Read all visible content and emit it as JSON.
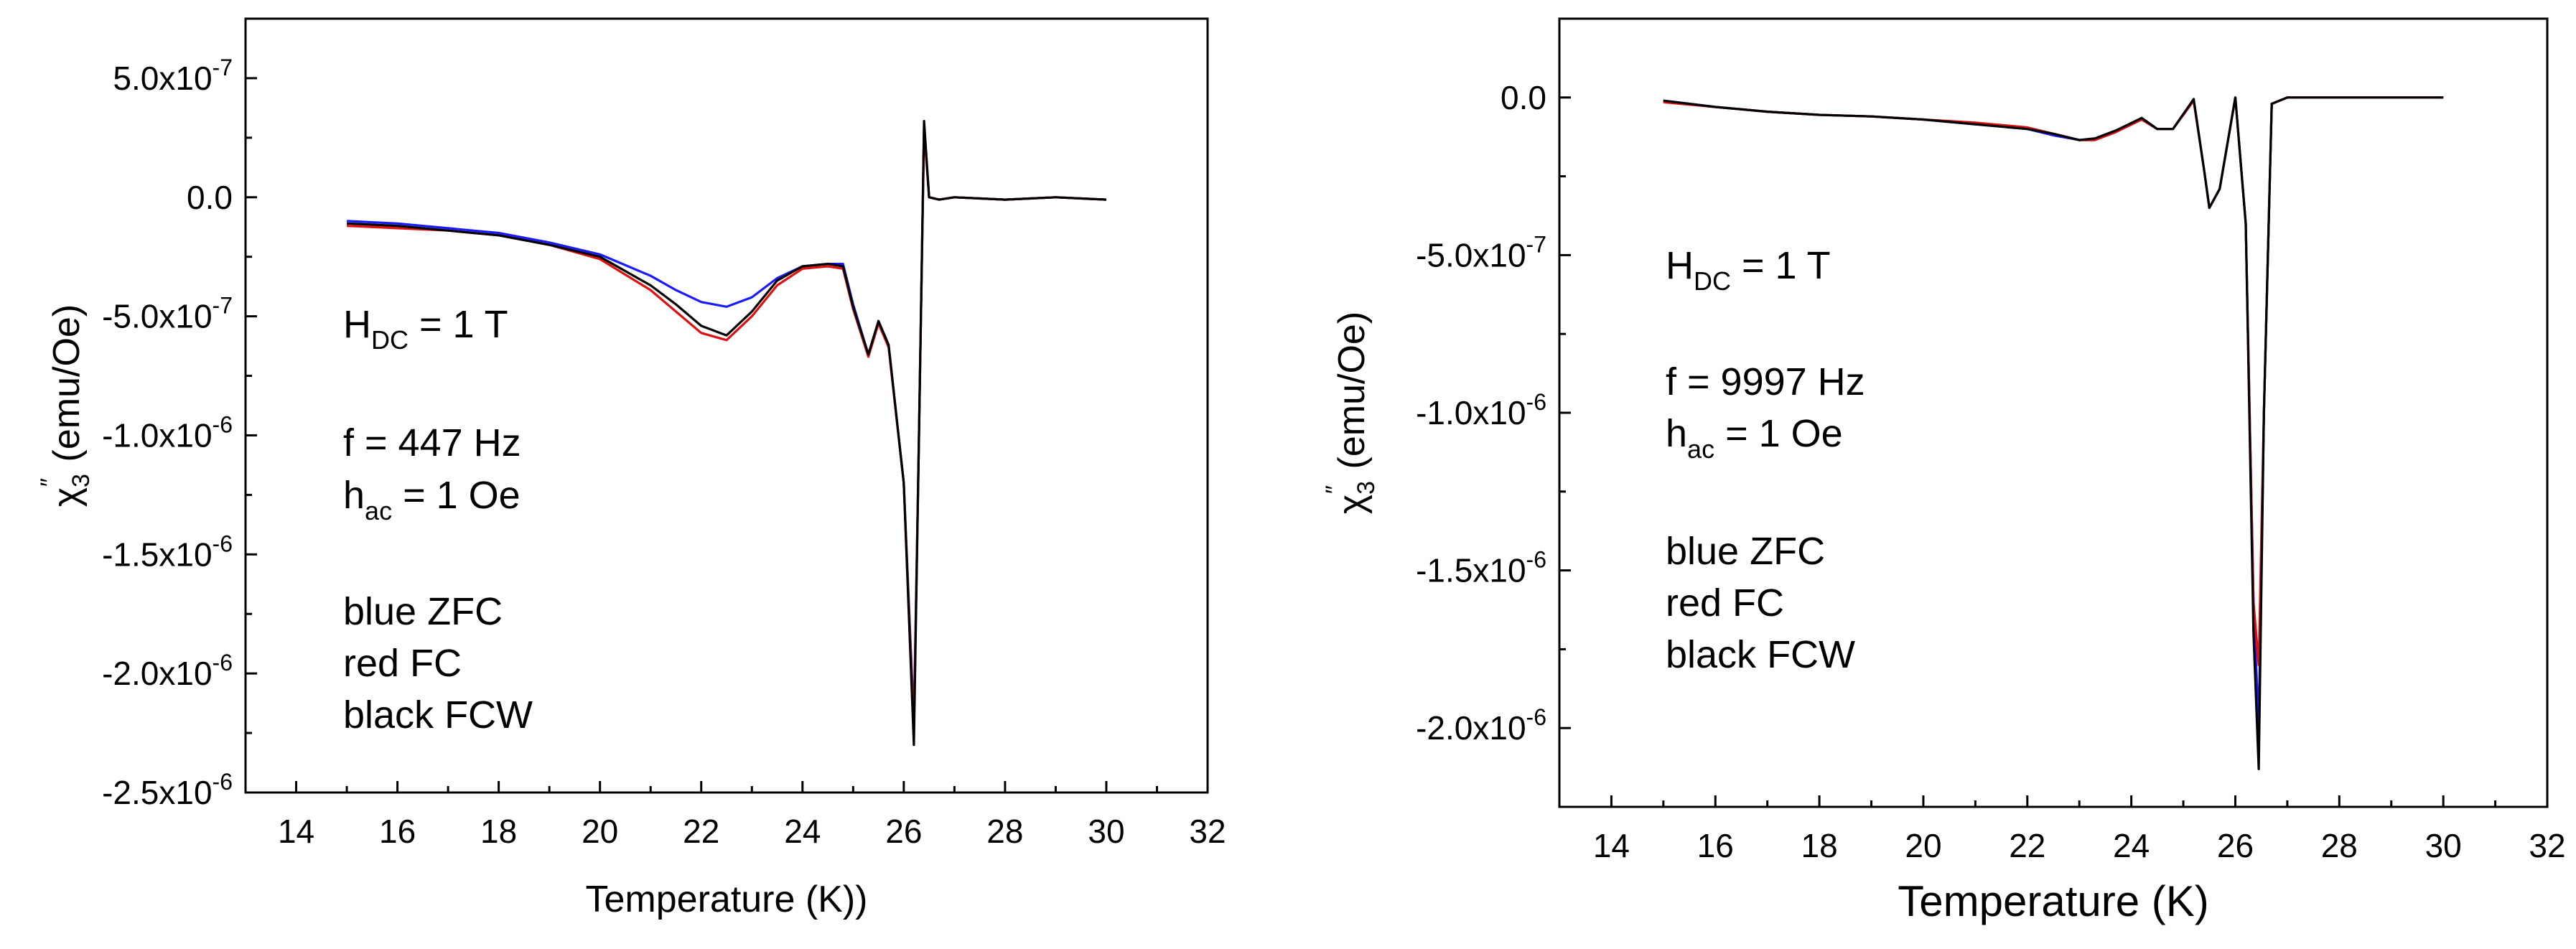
{
  "chart_data": [
    {
      "type": "line",
      "title": "",
      "xlabel": "Temperature (K))",
      "ylabel": "χ₃″ (emu/Oe)",
      "xlim": [
        13,
        32
      ],
      "ylim": [
        -2.5e-06,
        7.5e-07
      ],
      "xticks": [
        14,
        16,
        18,
        20,
        22,
        24,
        26,
        28,
        30,
        32
      ],
      "xtick_labels": [
        "14",
        "16",
        "18",
        "20",
        "22",
        "24",
        "26",
        "28",
        "30",
        "32"
      ],
      "yticks": [
        5e-07,
        0.0,
        -5e-07,
        -1e-06,
        -1.5e-06,
        -2e-06,
        -2.5e-06
      ],
      "ytick_labels": [
        "5.0x10-7",
        "0.0",
        "-5.0x10-7",
        "-1.0x10-6",
        "-1.5x10-6",
        "-2.0x10-6",
        "-2.5x10-6"
      ],
      "annotations": [
        "HDC = 1 T",
        "f = 447 Hz",
        "hac = 1 Oe",
        "blue ZFC",
        "red FC",
        "black FCW"
      ],
      "series": [
        {
          "name": "ZFC",
          "color": "#1a1aff",
          "x": [
            15,
            16,
            17,
            18,
            19,
            20,
            21,
            21.5,
            22,
            22.5,
            23,
            23.5,
            24,
            24.5,
            24.8,
            25,
            25.3,
            25.5,
            25.7,
            26,
            26.2,
            26.3,
            26.4,
            26.5,
            26.7,
            27,
            28,
            29,
            30
          ],
          "y": [
            -1e-07,
            -1.1e-07,
            -1.3e-07,
            -1.5e-07,
            -1.9e-07,
            -2.4e-07,
            -3.3e-07,
            -3.9e-07,
            -4.4e-07,
            -4.6e-07,
            -4.2e-07,
            -3.4e-07,
            -2.9e-07,
            -2.8e-07,
            -2.8e-07,
            -4.5e-07,
            -6.6e-07,
            -5.2e-07,
            -6.2e-07,
            -1.2e-06,
            -2.2e-06,
            -1e-06,
            3e-07,
            0.0,
            -1e-08,
            0.0,
            -1e-08,
            0.0,
            -1e-08
          ]
        },
        {
          "name": "FC",
          "color": "#e01010",
          "x": [
            15,
            16,
            17,
            18,
            19,
            20,
            21,
            21.5,
            22,
            22.5,
            23,
            23.5,
            24,
            24.5,
            24.8,
            25,
            25.3,
            25.5,
            25.7,
            26,
            26.2,
            26.3,
            26.4,
            26.5,
            26.7,
            27,
            28,
            29,
            30
          ],
          "y": [
            -1.2e-07,
            -1.3e-07,
            -1.4e-07,
            -1.6e-07,
            -2e-07,
            -2.6e-07,
            -3.9e-07,
            -4.8e-07,
            -5.7e-07,
            -6e-07,
            -5e-07,
            -3.7e-07,
            -3e-07,
            -2.9e-07,
            -3e-07,
            -4.7e-07,
            -6.7e-07,
            -5.3e-07,
            -6.3e-07,
            -1.2e-06,
            -2.24e-06,
            -1e-06,
            2.8e-07,
            0.0,
            -1e-08,
            0.0,
            -1e-08,
            0.0,
            -1e-08
          ]
        },
        {
          "name": "FCW",
          "color": "#000000",
          "x": [
            15,
            16,
            17,
            18,
            19,
            20,
            21,
            21.5,
            22,
            22.5,
            23,
            23.5,
            24,
            24.5,
            24.8,
            25,
            25.3,
            25.5,
            25.7,
            26,
            26.2,
            26.3,
            26.4,
            26.5,
            26.7,
            27,
            28,
            29,
            30
          ],
          "y": [
            -1.1e-07,
            -1.2e-07,
            -1.4e-07,
            -1.6e-07,
            -2e-07,
            -2.5e-07,
            -3.7e-07,
            -4.5e-07,
            -5.4e-07,
            -5.8e-07,
            -4.8e-07,
            -3.5e-07,
            -2.9e-07,
            -2.8e-07,
            -2.9e-07,
            -4.6e-07,
            -6.6e-07,
            -5.2e-07,
            -6.2e-07,
            -1.2e-06,
            -2.3e-06,
            -1e-06,
            3.2e-07,
            0.0,
            -1e-08,
            0.0,
            -1e-08,
            0.0,
            -1e-08
          ]
        }
      ]
    },
    {
      "type": "line",
      "title": "",
      "xlabel": "Temperature (K)",
      "ylabel": "χ₃″ (emu/Oe)",
      "xlim": [
        13,
        32
      ],
      "ylim": [
        -2.25e-06,
        2.5e-07
      ],
      "xticks": [
        14,
        16,
        18,
        20,
        22,
        24,
        26,
        28,
        30,
        32
      ],
      "xtick_labels": [
        "14",
        "16",
        "18",
        "20",
        "22",
        "24",
        "26",
        "28",
        "30",
        "32"
      ],
      "yticks": [
        0.0,
        -5e-07,
        -1e-06,
        -1.5e-06,
        -2e-06
      ],
      "ytick_labels": [
        "0.0",
        "-5.0x10-7",
        "-1.0x10-6",
        "-1.5x10-6",
        "-2.0x10-6"
      ],
      "annotations": [
        "HDC = 1 T",
        "f = 9997 Hz",
        "hac = 1 Oe",
        "blue ZFC",
        "red FC",
        "black FCW"
      ],
      "series": [
        {
          "name": "ZFC",
          "color": "#1a1aff",
          "x": [
            15,
            16,
            17,
            18,
            19,
            20,
            21,
            22,
            22.5,
            23,
            23.3,
            23.7,
            24.2,
            24.5,
            24.8,
            25.2,
            25.4,
            25.5,
            25.7,
            26.0,
            26.2,
            26.35,
            26.45,
            26.55,
            26.7,
            27,
            28,
            29,
            30
          ],
          "y": [
            -1e-08,
            -3e-08,
            -4.5e-08,
            -5.5e-08,
            -6e-08,
            -7e-08,
            -8.5e-08,
            -1e-07,
            -1.2e-07,
            -1.35e-07,
            -1.3e-07,
            -1.05e-07,
            -7e-08,
            -1e-07,
            -1e-07,
            -1e-08,
            -2.3e-07,
            -3.5e-07,
            -2.9e-07,
            0.0,
            -4e-07,
            -1.6e-06,
            -2e-06,
            -1e-06,
            -2e-08,
            0.0,
            0.0,
            0.0,
            0.0
          ]
        },
        {
          "name": "FC",
          "color": "#e01010",
          "x": [
            15,
            16,
            17,
            18,
            19,
            20,
            21,
            22,
            22.5,
            23,
            23.3,
            23.7,
            24.2,
            24.5,
            24.8,
            25.2,
            25.4,
            25.5,
            25.7,
            26.0,
            26.2,
            26.35,
            26.45,
            26.55,
            26.7,
            27,
            28,
            29,
            30
          ],
          "y": [
            -1.5e-08,
            -3e-08,
            -4.5e-08,
            -5.5e-08,
            -6e-08,
            -7e-08,
            -8e-08,
            -9.5e-08,
            -1.15e-07,
            -1.35e-07,
            -1.35e-07,
            -1.1e-07,
            -7e-08,
            -1e-07,
            -1e-07,
            -1e-08,
            -2.3e-07,
            -3.5e-07,
            -2.9e-07,
            0.0,
            -4e-07,
            -1.6e-06,
            -1.8e-06,
            -1e-06,
            -2e-08,
            0.0,
            0.0,
            0.0,
            0.0
          ]
        },
        {
          "name": "FCW",
          "color": "#000000",
          "x": [
            15,
            16,
            17,
            18,
            19,
            20,
            21,
            22,
            22.5,
            23,
            23.3,
            23.7,
            24.2,
            24.5,
            24.8,
            25.2,
            25.4,
            25.5,
            25.7,
            26.0,
            26.2,
            26.35,
            26.45,
            26.55,
            26.7,
            27,
            28,
            29,
            30
          ],
          "y": [
            -1e-08,
            -3e-08,
            -4.5e-08,
            -5.5e-08,
            -6e-08,
            -7e-08,
            -8.5e-08,
            -1e-07,
            -1.15e-07,
            -1.35e-07,
            -1.3e-07,
            -1.05e-07,
            -6.5e-08,
            -1e-07,
            -1e-07,
            -5e-09,
            -2.3e-07,
            -3.5e-07,
            -2.9e-07,
            0.0,
            -4e-07,
            -1.7e-06,
            -2.13e-06,
            -1e-06,
            -2e-08,
            0.0,
            0.0,
            0.0,
            0.0
          ]
        }
      ]
    }
  ]
}
